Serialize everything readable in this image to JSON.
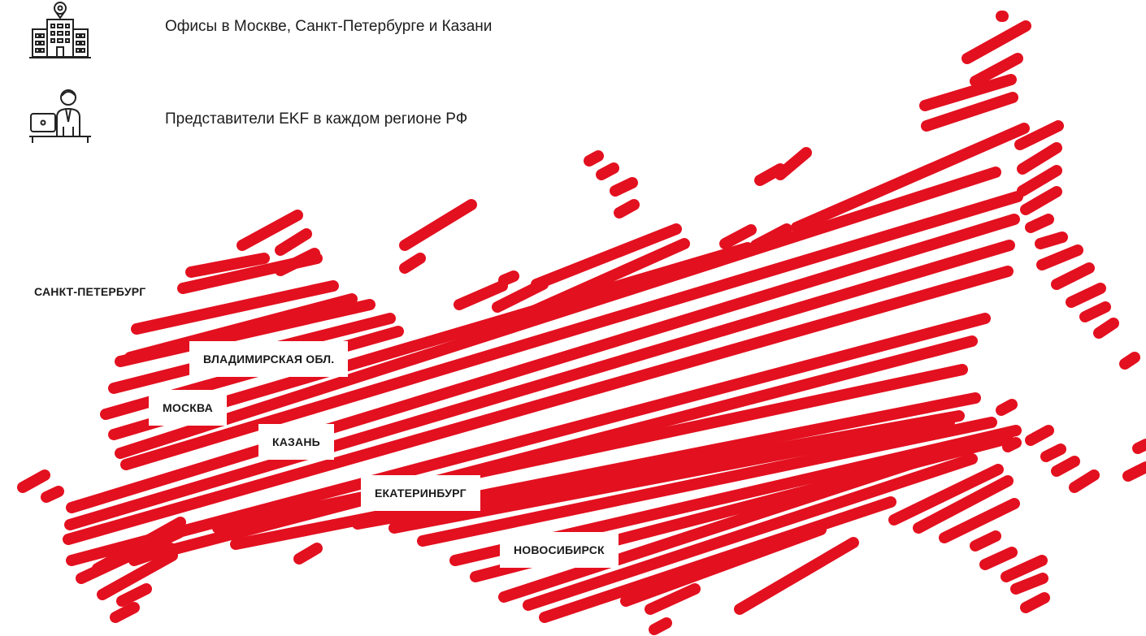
{
  "features": [
    {
      "icon": "office-building-icon",
      "text": "Офисы в Москве, Санкт-Петербурге и Казани"
    },
    {
      "icon": "representative-icon",
      "text": "Представители EKF в каждом регионе РФ"
    }
  ],
  "map": {
    "accent_color": "#e3101f",
    "cities": [
      {
        "name": "spb",
        "label": "САНКТ-ПЕТЕРБУРГ"
      },
      {
        "name": "vladimir",
        "label": "ВЛАДИМИРСКАЯ ОБЛ."
      },
      {
        "name": "moscow",
        "label": "МОСКВА"
      },
      {
        "name": "kazan",
        "label": "КАЗАНЬ"
      },
      {
        "name": "ekaterinburg",
        "label": "ЕКАТЕРИНБУРГ"
      },
      {
        "name": "novosibirsk",
        "label": "НОВОСИБИРСК"
      }
    ]
  }
}
